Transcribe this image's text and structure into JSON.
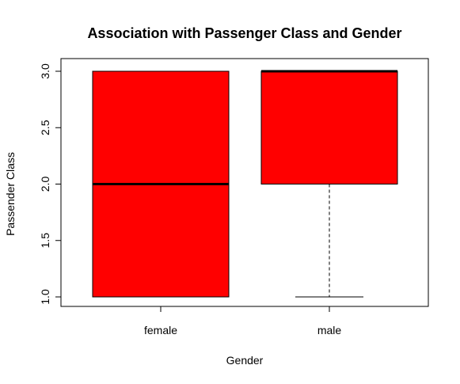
{
  "chart_data": {
    "type": "boxplot",
    "title": "Association with Passenger Class and Gender",
    "xlabel": "Gender",
    "ylabel": "Passender Class",
    "ylim": [
      1.0,
      3.0
    ],
    "y_ticks": [
      "1.0",
      "1.5",
      "2.0",
      "2.5",
      "3.0"
    ],
    "categories": [
      "female",
      "male"
    ],
    "box_fill_color": "#ff0000",
    "boxes": [
      {
        "category": "female",
        "whisker_low": 1.0,
        "q1": 1.0,
        "median": 2.0,
        "q3": 3.0,
        "whisker_high": 3.0
      },
      {
        "category": "male",
        "whisker_low": 1.0,
        "q1": 2.0,
        "median": 3.0,
        "q3": 3.0,
        "whisker_high": 3.0
      }
    ],
    "grid": false,
    "legend": "none"
  }
}
